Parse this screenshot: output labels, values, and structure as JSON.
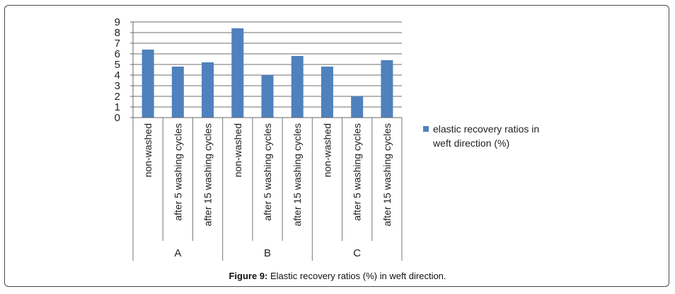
{
  "caption": {
    "label": "Figure 9:",
    "text": "Elastic recovery ratios (%) in weft direction."
  },
  "chart_data": {
    "type": "bar",
    "groups": [
      "A",
      "B",
      "C"
    ],
    "categories": [
      "non-washed",
      "after 5 washing cycles",
      "after 15 washing cycles",
      "non-washed",
      "after 5 washing cycles",
      "after 15 washing cycles",
      "non-washed",
      "after 5 washing cycles",
      "after 15 washing cycles"
    ],
    "series": [
      {
        "name": "elastic recovery ratios in weft direction (%)",
        "color": "#4f81bd",
        "values": [
          6.4,
          4.8,
          5.2,
          8.4,
          4.0,
          5.8,
          4.8,
          2.0,
          5.4
        ]
      }
    ],
    "yticks": [
      "0",
      "1",
      "2",
      "3",
      "4",
      "5",
      "6",
      "7",
      "8",
      "9"
    ],
    "ylim": [
      0,
      9
    ],
    "grid": true,
    "legend": "right"
  }
}
